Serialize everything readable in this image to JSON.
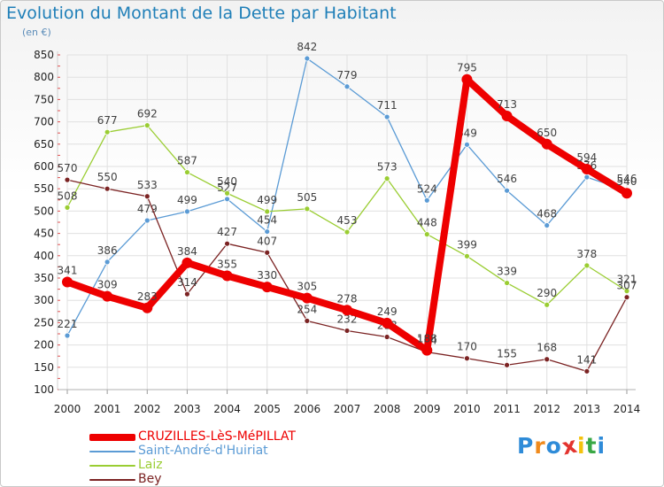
{
  "header": {
    "title": "Evolution du Montant de la Dette par Habitant",
    "subtitle": "(en €)"
  },
  "logo": {
    "text": "Proxiti"
  },
  "colors": {
    "title": "#1f7fb8",
    "grid": "#e0e0e0",
    "axis_text": "#222222",
    "label_text": "#404040"
  },
  "chart_data": {
    "type": "line",
    "x": [
      "2000",
      "2001",
      "2002",
      "2003",
      "2004",
      "2005",
      "2006",
      "2007",
      "2008",
      "2009",
      "2010",
      "2011",
      "2012",
      "2013",
      "2014"
    ],
    "ylim": [
      100,
      850
    ],
    "yticks": [
      100,
      150,
      200,
      250,
      300,
      350,
      400,
      450,
      500,
      550,
      600,
      650,
      700,
      750,
      800,
      850
    ],
    "grid": true,
    "legend": "bottom-left",
    "series": [
      {
        "name": "CRUZILLES-LèS-MéPILLAT",
        "color": "#ee0000",
        "style": "bold",
        "values": [
          341,
          309,
          283,
          384,
          355,
          330,
          305,
          278,
          249,
          188,
          795,
          713,
          650,
          594,
          540
        ]
      },
      {
        "name": "Saint-André-d'Huiriat",
        "color": "#5b9bd5",
        "style": "thin",
        "values": [
          221,
          386,
          479,
          499,
          527,
          454,
          842,
          779,
          711,
          524,
          649,
          546,
          468,
          576,
          546
        ]
      },
      {
        "name": "Laiz",
        "color": "#9acd32",
        "style": "thin",
        "values": [
          508,
          677,
          692,
          587,
          540,
          499,
          505,
          453,
          573,
          448,
          399,
          339,
          290,
          378,
          321
        ]
      },
      {
        "name": "Bey",
        "color": "#7b2323",
        "style": "thin",
        "values": [
          570,
          550,
          533,
          314,
          427,
          407,
          254,
          232,
          218,
          184,
          170,
          155,
          168,
          141,
          307
        ]
      }
    ]
  }
}
